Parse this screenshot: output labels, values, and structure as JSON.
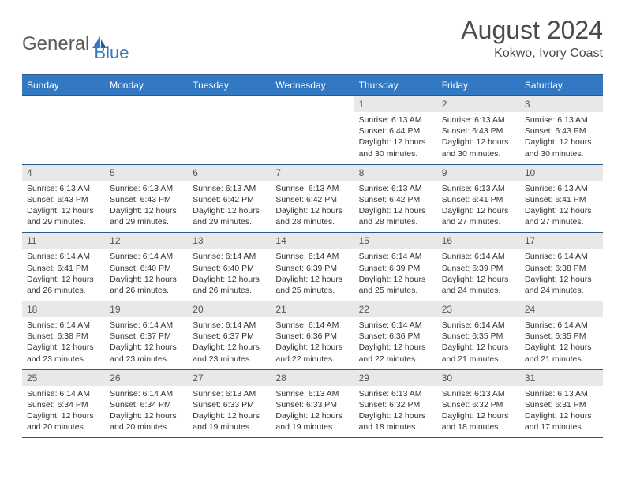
{
  "logo": {
    "text1": "General",
    "text2": "Blue",
    "accent": "#3278c2",
    "gray": "#5a5a5a"
  },
  "title": "August 2024",
  "subtitle": "Kokwo, Ivory Coast",
  "colors": {
    "header_bg": "#3278c2",
    "header_text": "#ffffff",
    "border": "#2a5a8a",
    "daynum_bg": "#e8e8e8",
    "body_bg": "#ffffff",
    "text": "#333333"
  },
  "weekdays": [
    "Sunday",
    "Monday",
    "Tuesday",
    "Wednesday",
    "Thursday",
    "Friday",
    "Saturday"
  ],
  "weeks": [
    [
      {
        "n": "",
        "lines": []
      },
      {
        "n": "",
        "lines": []
      },
      {
        "n": "",
        "lines": []
      },
      {
        "n": "",
        "lines": []
      },
      {
        "n": "1",
        "lines": [
          "Sunrise: 6:13 AM",
          "Sunset: 6:44 PM",
          "Daylight: 12 hours and 30 minutes."
        ]
      },
      {
        "n": "2",
        "lines": [
          "Sunrise: 6:13 AM",
          "Sunset: 6:43 PM",
          "Daylight: 12 hours and 30 minutes."
        ]
      },
      {
        "n": "3",
        "lines": [
          "Sunrise: 6:13 AM",
          "Sunset: 6:43 PM",
          "Daylight: 12 hours and 30 minutes."
        ]
      }
    ],
    [
      {
        "n": "4",
        "lines": [
          "Sunrise: 6:13 AM",
          "Sunset: 6:43 PM",
          "Daylight: 12 hours and 29 minutes."
        ]
      },
      {
        "n": "5",
        "lines": [
          "Sunrise: 6:13 AM",
          "Sunset: 6:43 PM",
          "Daylight: 12 hours and 29 minutes."
        ]
      },
      {
        "n": "6",
        "lines": [
          "Sunrise: 6:13 AM",
          "Sunset: 6:42 PM",
          "Daylight: 12 hours and 29 minutes."
        ]
      },
      {
        "n": "7",
        "lines": [
          "Sunrise: 6:13 AM",
          "Sunset: 6:42 PM",
          "Daylight: 12 hours and 28 minutes."
        ]
      },
      {
        "n": "8",
        "lines": [
          "Sunrise: 6:13 AM",
          "Sunset: 6:42 PM",
          "Daylight: 12 hours and 28 minutes."
        ]
      },
      {
        "n": "9",
        "lines": [
          "Sunrise: 6:13 AM",
          "Sunset: 6:41 PM",
          "Daylight: 12 hours and 27 minutes."
        ]
      },
      {
        "n": "10",
        "lines": [
          "Sunrise: 6:13 AM",
          "Sunset: 6:41 PM",
          "Daylight: 12 hours and 27 minutes."
        ]
      }
    ],
    [
      {
        "n": "11",
        "lines": [
          "Sunrise: 6:14 AM",
          "Sunset: 6:41 PM",
          "Daylight: 12 hours and 26 minutes."
        ]
      },
      {
        "n": "12",
        "lines": [
          "Sunrise: 6:14 AM",
          "Sunset: 6:40 PM",
          "Daylight: 12 hours and 26 minutes."
        ]
      },
      {
        "n": "13",
        "lines": [
          "Sunrise: 6:14 AM",
          "Sunset: 6:40 PM",
          "Daylight: 12 hours and 26 minutes."
        ]
      },
      {
        "n": "14",
        "lines": [
          "Sunrise: 6:14 AM",
          "Sunset: 6:39 PM",
          "Daylight: 12 hours and 25 minutes."
        ]
      },
      {
        "n": "15",
        "lines": [
          "Sunrise: 6:14 AM",
          "Sunset: 6:39 PM",
          "Daylight: 12 hours and 25 minutes."
        ]
      },
      {
        "n": "16",
        "lines": [
          "Sunrise: 6:14 AM",
          "Sunset: 6:39 PM",
          "Daylight: 12 hours and 24 minutes."
        ]
      },
      {
        "n": "17",
        "lines": [
          "Sunrise: 6:14 AM",
          "Sunset: 6:38 PM",
          "Daylight: 12 hours and 24 minutes."
        ]
      }
    ],
    [
      {
        "n": "18",
        "lines": [
          "Sunrise: 6:14 AM",
          "Sunset: 6:38 PM",
          "Daylight: 12 hours and 23 minutes."
        ]
      },
      {
        "n": "19",
        "lines": [
          "Sunrise: 6:14 AM",
          "Sunset: 6:37 PM",
          "Daylight: 12 hours and 23 minutes."
        ]
      },
      {
        "n": "20",
        "lines": [
          "Sunrise: 6:14 AM",
          "Sunset: 6:37 PM",
          "Daylight: 12 hours and 23 minutes."
        ]
      },
      {
        "n": "21",
        "lines": [
          "Sunrise: 6:14 AM",
          "Sunset: 6:36 PM",
          "Daylight: 12 hours and 22 minutes."
        ]
      },
      {
        "n": "22",
        "lines": [
          "Sunrise: 6:14 AM",
          "Sunset: 6:36 PM",
          "Daylight: 12 hours and 22 minutes."
        ]
      },
      {
        "n": "23",
        "lines": [
          "Sunrise: 6:14 AM",
          "Sunset: 6:35 PM",
          "Daylight: 12 hours and 21 minutes."
        ]
      },
      {
        "n": "24",
        "lines": [
          "Sunrise: 6:14 AM",
          "Sunset: 6:35 PM",
          "Daylight: 12 hours and 21 minutes."
        ]
      }
    ],
    [
      {
        "n": "25",
        "lines": [
          "Sunrise: 6:14 AM",
          "Sunset: 6:34 PM",
          "Daylight: 12 hours and 20 minutes."
        ]
      },
      {
        "n": "26",
        "lines": [
          "Sunrise: 6:14 AM",
          "Sunset: 6:34 PM",
          "Daylight: 12 hours and 20 minutes."
        ]
      },
      {
        "n": "27",
        "lines": [
          "Sunrise: 6:13 AM",
          "Sunset: 6:33 PM",
          "Daylight: 12 hours and 19 minutes."
        ]
      },
      {
        "n": "28",
        "lines": [
          "Sunrise: 6:13 AM",
          "Sunset: 6:33 PM",
          "Daylight: 12 hours and 19 minutes."
        ]
      },
      {
        "n": "29",
        "lines": [
          "Sunrise: 6:13 AM",
          "Sunset: 6:32 PM",
          "Daylight: 12 hours and 18 minutes."
        ]
      },
      {
        "n": "30",
        "lines": [
          "Sunrise: 6:13 AM",
          "Sunset: 6:32 PM",
          "Daylight: 12 hours and 18 minutes."
        ]
      },
      {
        "n": "31",
        "lines": [
          "Sunrise: 6:13 AM",
          "Sunset: 6:31 PM",
          "Daylight: 12 hours and 17 minutes."
        ]
      }
    ]
  ]
}
